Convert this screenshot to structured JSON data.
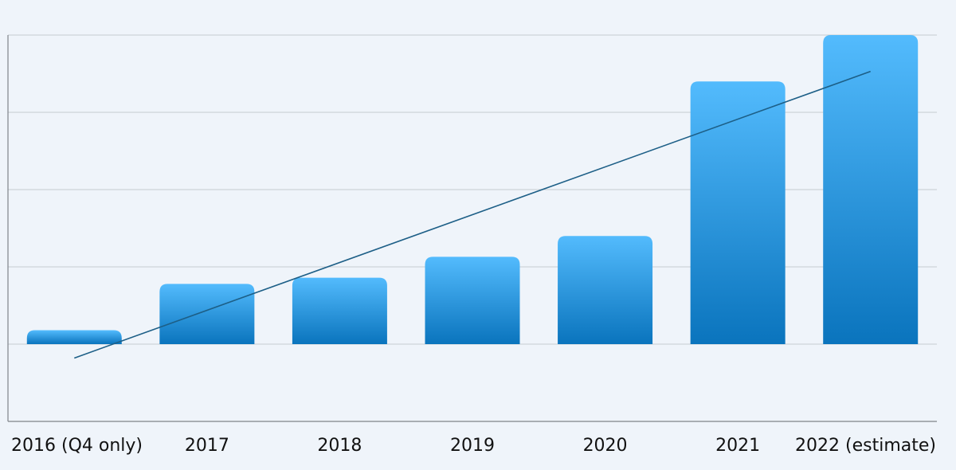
{
  "chart_data": {
    "type": "bar",
    "title": "",
    "xlabel": "",
    "ylabel": "",
    "categories": [
      "2016 (Q4 only)",
      "2017",
      "2018",
      "2019",
      "2020",
      "2021",
      "2022 (estimate)"
    ],
    "series": [
      {
        "values": [
          0.18,
          0.78,
          0.86,
          1.13,
          1.4,
          3.4,
          4.0
        ]
      }
    ],
    "trendline": {
      "type": "linear",
      "start": -0.18,
      "end": 3.53
    },
    "ylim": [
      -1,
      4
    ],
    "grid": true,
    "legend": "none",
    "colors": {
      "bar_top": "#53bbfd",
      "bar_bottom": "#0a74bd",
      "trend": "#1d5f87",
      "grid": "#c6cbd0",
      "axis": "#7f8489",
      "background": "#eff4fa"
    }
  }
}
